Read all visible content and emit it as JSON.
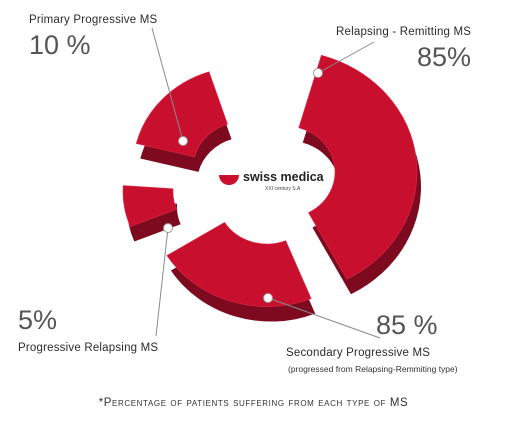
{
  "chart_data": {
    "type": "pie",
    "series_color": "#c8102e",
    "slices": [
      {
        "label": "Relapsing - Remitting  MS",
        "value_text": "85%",
        "value": 85
      },
      {
        "label": "Secondary Progressive MS",
        "sublabel": "(progressed from Relapsing-Remmiting type)",
        "value_text": "85 %",
        "value": 85
      },
      {
        "label": "Progressive Relapsing MS",
        "value_text": "5%",
        "value": 5
      },
      {
        "label": "Primary Progressive MS",
        "value_text": "10 %",
        "value": 10
      }
    ],
    "footnote": "*Percentage of patients suffering from each type of MS"
  },
  "logo": {
    "name": "swiss medica",
    "tagline": "XXI century S.A"
  }
}
